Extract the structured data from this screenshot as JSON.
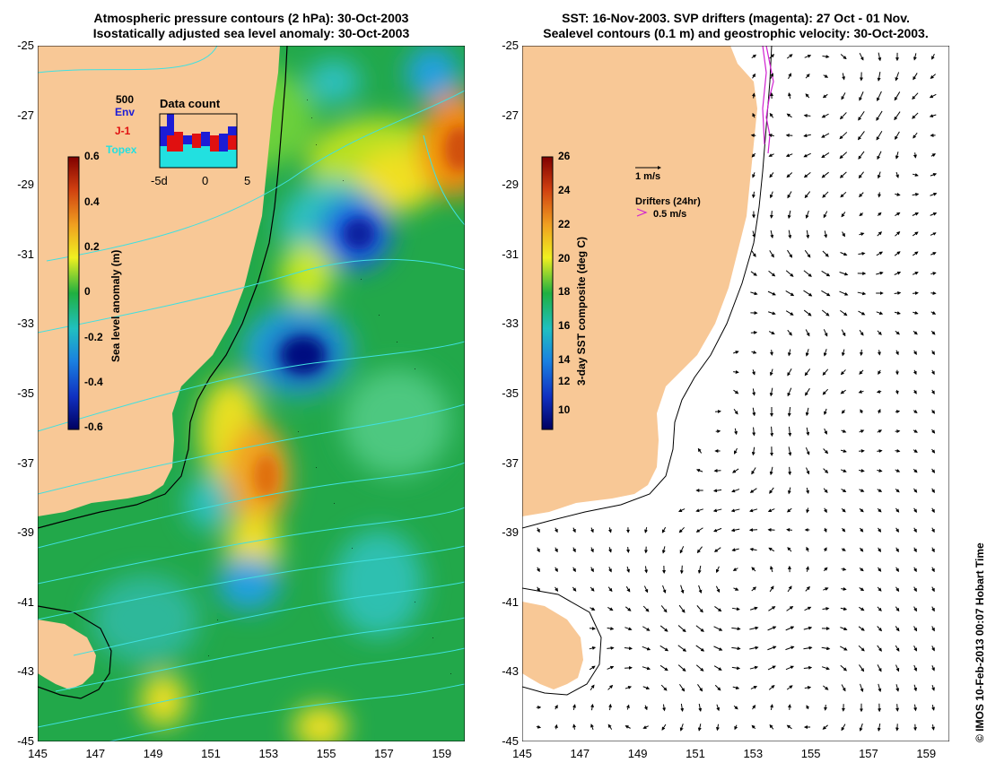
{
  "left_panel": {
    "title_line1": "Atmospheric pressure contours (2 hPa): 30-Oct-2003",
    "title_line2": "Isostatically adjusted sea level anomaly: 30-Oct-2003",
    "colorbar": {
      "title": "Sea level anomaly (m)",
      "ticks": [
        "0.6",
        "0.4",
        "0.2",
        "0",
        "-0.2",
        "-0.4",
        "-0.6"
      ]
    },
    "data_count": {
      "title": "Data count",
      "max_label": "500",
      "x_ticks": [
        "-5d",
        "0",
        "5"
      ],
      "legend": [
        {
          "label": "Env",
          "color": "#1c1cd6"
        },
        {
          "label": "J-1",
          "color": "#e01010"
        },
        {
          "label": "Topex",
          "color": "#22e0e0"
        }
      ]
    }
  },
  "right_panel": {
    "title_line1": "SST: 16-Nov-2003. SVP drifters (magenta): 27 Oct - 01 Nov.",
    "title_line2": "Sealevel contours (0.1 m) and geostrophic velocity: 30-Oct-2003.",
    "colorbar": {
      "title": "3-day SST composite (deg C)",
      "ticks": [
        "26",
        "24",
        "22",
        "20",
        "18",
        "16",
        "14",
        "12",
        "10"
      ]
    },
    "velocity_scale_label": "1 m/s",
    "drifter_legend_title": "Drifters (24hr)",
    "drifter_legend_label": "0.5 m/s"
  },
  "axes": {
    "y_ticks": [
      "-25",
      "-27",
      "-29",
      "-31",
      "-33",
      "-35",
      "-37",
      "-39",
      "-41",
      "-43",
      "-45"
    ],
    "x_ticks": [
      "145",
      "147",
      "149",
      "151",
      "153",
      "155",
      "157",
      "159"
    ]
  },
  "credit": "© IMOS 10-Feb-2013 00:07 Hobart Time",
  "colors": {
    "land": "#f8c896",
    "ocean_base": "#22a84a",
    "contour": "#40e0e0",
    "drifter": "#d020d0"
  }
}
